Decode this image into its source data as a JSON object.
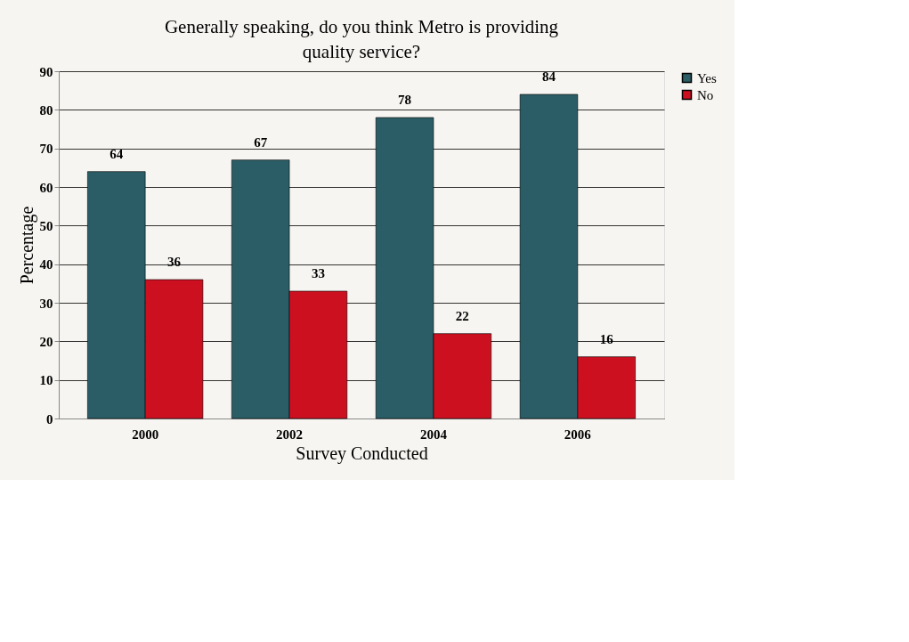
{
  "chart_data": {
    "type": "bar",
    "title": "Generally speaking, do you think Metro is providing quality service?",
    "xlabel": "Survey Conducted",
    "ylabel": "Percentage",
    "categories": [
      "2000",
      "2002",
      "2004",
      "2006"
    ],
    "series": [
      {
        "name": "Yes",
        "color": "#2b5d66",
        "values": [
          64,
          67,
          78,
          84
        ]
      },
      {
        "name": "No",
        "color": "#cc1020",
        "values": [
          36,
          33,
          22,
          16
        ]
      }
    ],
    "ylim": [
      0,
      90
    ],
    "yticks": [
      0,
      10,
      20,
      30,
      40,
      50,
      60,
      70,
      80,
      90
    ],
    "grid": "y",
    "legend": "right",
    "data_labels": true
  }
}
